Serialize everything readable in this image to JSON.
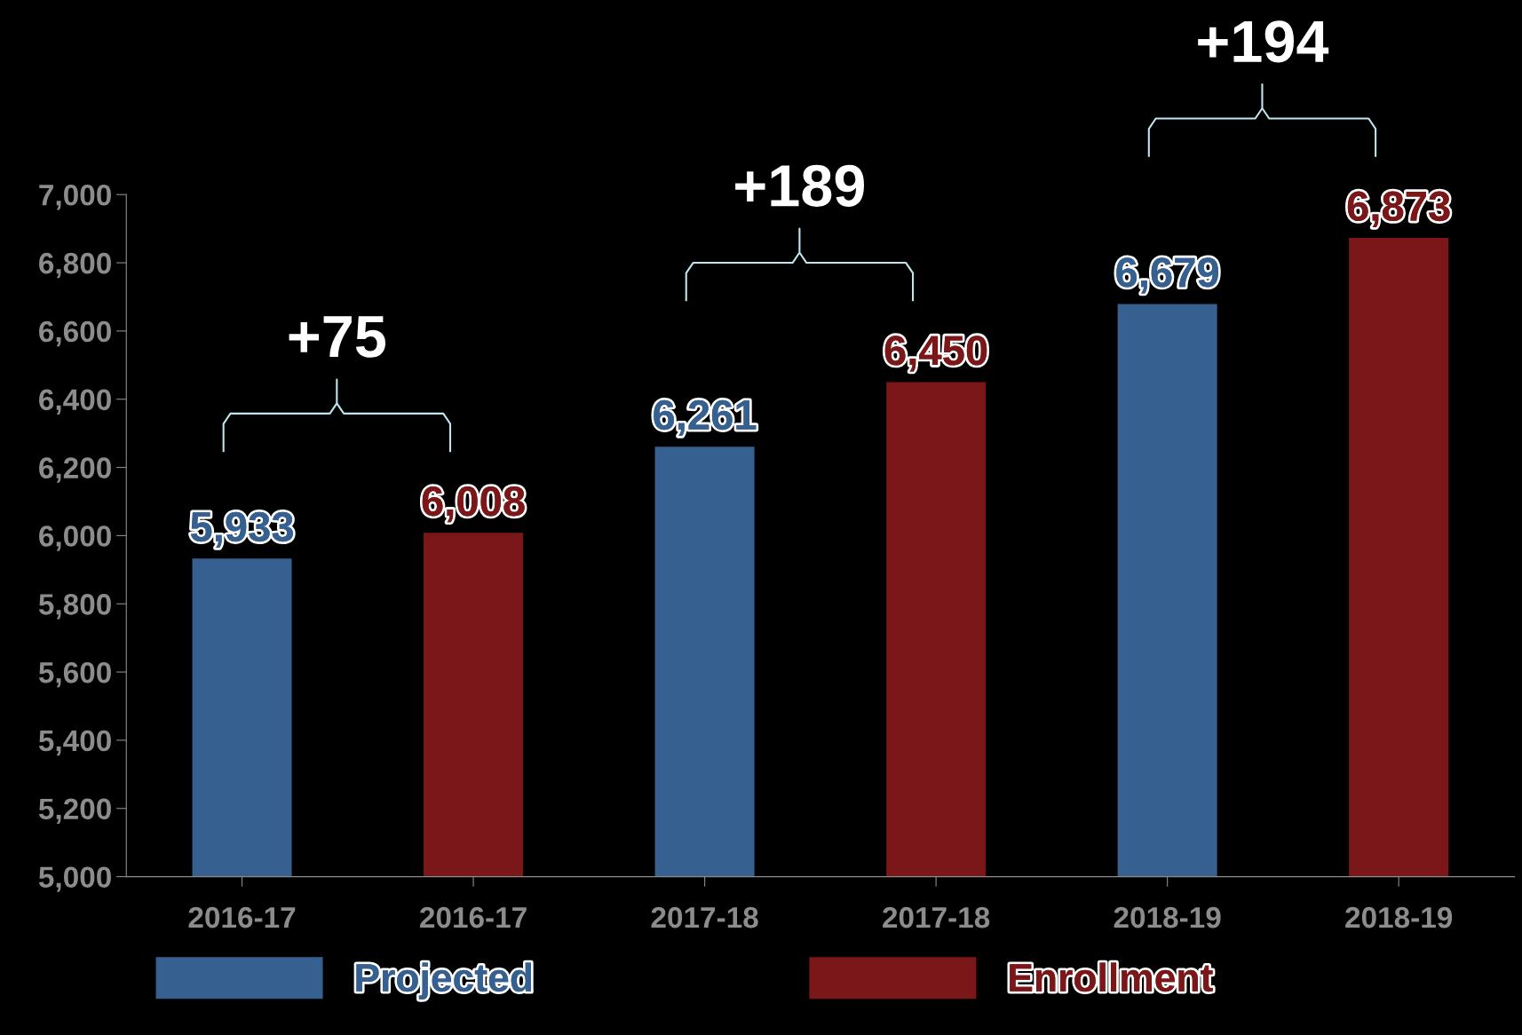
{
  "chart_data": {
    "type": "bar",
    "categories": [
      "2016-17",
      "2016-17",
      "2017-18",
      "2017-18",
      "2018-19",
      "2018-19"
    ],
    "series": [
      {
        "name": "Projected",
        "color": "#36608f",
        "values": [
          5933,
          null,
          6261,
          null,
          6679,
          null
        ],
        "value_labels": [
          "5,933",
          null,
          "6,261",
          null,
          "6,679",
          null
        ]
      },
      {
        "name": "Enrollment",
        "color": "#7b1719",
        "values": [
          null,
          6008,
          null,
          6450,
          null,
          6873
        ],
        "value_labels": [
          null,
          "6,008",
          null,
          "6,450",
          null,
          "6,873"
        ]
      }
    ],
    "ylim": [
      5000,
      7000
    ],
    "yticks": [
      {
        "value": 5000,
        "label": "5,000"
      },
      {
        "value": 5200,
        "label": "5,200"
      },
      {
        "value": 5400,
        "label": "5,400"
      },
      {
        "value": 5600,
        "label": "5,600"
      },
      {
        "value": 5800,
        "label": "5,800"
      },
      {
        "value": 6000,
        "label": "6,000"
      },
      {
        "value": 6200,
        "label": "6,200"
      },
      {
        "value": 6400,
        "label": "6,400"
      },
      {
        "value": 6600,
        "label": "6,600"
      },
      {
        "value": 6800,
        "label": "6,800"
      },
      {
        "value": 7000,
        "label": "7,000"
      }
    ],
    "annotations": [
      "+75",
      "+189",
      "+194"
    ],
    "legend": "bottom",
    "grid": false
  }
}
